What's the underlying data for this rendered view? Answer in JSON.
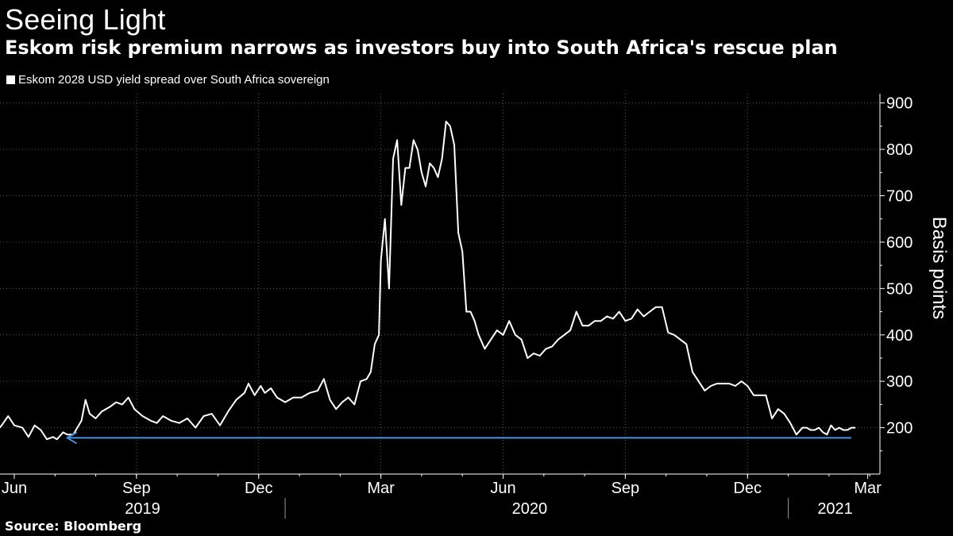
{
  "header": {
    "title": "Seeing Light",
    "subtitle": "Eskom risk premium narrows as investors buy into South Africa's rescue plan"
  },
  "legend": {
    "label": "Eskom 2028 USD yield spread over South Africa sovereign"
  },
  "footer": {
    "source": "Source: Bloomberg"
  },
  "colors": {
    "background": "#000000",
    "series": "#ffffff",
    "arrow": "#4a90e2",
    "grid": "#555555"
  },
  "chart_data": {
    "type": "line",
    "title": "Seeing Light",
    "subtitle": "Eskom risk premium narrows as investors buy into South Africa's rescue plan",
    "ylabel": "Basis points",
    "ylim": [
      100,
      920
    ],
    "yticks": [
      200,
      300,
      400,
      500,
      600,
      700,
      800,
      900
    ],
    "xlim": [
      0,
      21.6
    ],
    "x_units": "months since 2019-05-21",
    "month_ticks": [
      {
        "label": "Jun",
        "x": 0.35
      },
      {
        "label": "Sep",
        "x": 3.35
      },
      {
        "label": "Dec",
        "x": 6.35
      },
      {
        "label": "Mar",
        "x": 9.35
      },
      {
        "label": "Jun",
        "x": 12.35
      },
      {
        "label": "Sep",
        "x": 15.35
      },
      {
        "label": "Dec",
        "x": 18.35
      },
      {
        "label": "Mar",
        "x": 21.3
      }
    ],
    "year_labels": [
      {
        "label": "2019",
        "x": 3.5
      },
      {
        "label": "2020",
        "x": 13.0
      },
      {
        "label": "2021",
        "x": 20.5
      }
    ],
    "year_dividers": [
      7.0,
      19.35
    ],
    "series": [
      {
        "name": "Eskom 2028 USD yield spread over South Africa sovereign",
        "x": [
          0.0,
          0.2,
          0.35,
          0.55,
          0.7,
          0.85,
          1.0,
          1.15,
          1.3,
          1.4,
          1.55,
          1.65,
          1.8,
          2.0,
          2.1,
          2.2,
          2.35,
          2.5,
          2.7,
          2.85,
          3.0,
          3.15,
          3.3,
          3.5,
          3.7,
          3.85,
          4.0,
          4.2,
          4.4,
          4.6,
          4.8,
          5.0,
          5.2,
          5.4,
          5.6,
          5.8,
          6.0,
          6.1,
          6.25,
          6.4,
          6.5,
          6.65,
          6.8,
          7.0,
          7.2,
          7.4,
          7.6,
          7.8,
          7.95,
          8.1,
          8.25,
          8.4,
          8.55,
          8.7,
          8.85,
          9.0,
          9.1,
          9.2,
          9.3,
          9.35,
          9.45,
          9.55,
          9.65,
          9.75,
          9.85,
          9.95,
          10.05,
          10.15,
          10.25,
          10.35,
          10.45,
          10.55,
          10.65,
          10.75,
          10.85,
          10.95,
          11.05,
          11.15,
          11.25,
          11.35,
          11.45,
          11.55,
          11.65,
          11.75,
          11.9,
          12.05,
          12.2,
          12.35,
          12.5,
          12.65,
          12.8,
          12.95,
          13.1,
          13.25,
          13.4,
          13.55,
          13.7,
          13.85,
          14.0,
          14.15,
          14.3,
          14.45,
          14.6,
          14.75,
          14.9,
          15.05,
          15.2,
          15.35,
          15.5,
          15.65,
          15.8,
          15.95,
          16.1,
          16.25,
          16.4,
          16.55,
          16.7,
          16.85,
          17.0,
          17.15,
          17.3,
          17.45,
          17.6,
          17.75,
          17.9,
          18.05,
          18.2,
          18.35,
          18.5,
          18.65,
          18.8,
          18.95,
          19.1,
          19.25,
          19.4,
          19.55,
          19.7,
          19.8,
          19.9,
          20.0,
          20.1,
          20.2,
          20.3,
          20.4,
          20.5,
          20.6,
          20.7,
          20.8,
          20.9,
          21.0
        ],
        "values": [
          200,
          225,
          205,
          200,
          180,
          205,
          195,
          175,
          180,
          175,
          190,
          185,
          185,
          215,
          260,
          230,
          220,
          235,
          245,
          255,
          250,
          265,
          240,
          225,
          215,
          210,
          225,
          215,
          210,
          220,
          200,
          225,
          230,
          205,
          235,
          260,
          275,
          295,
          270,
          290,
          275,
          285,
          265,
          255,
          265,
          265,
          275,
          280,
          305,
          260,
          240,
          255,
          265,
          250,
          300,
          305,
          320,
          380,
          400,
          560,
          650,
          500,
          780,
          820,
          680,
          760,
          760,
          820,
          800,
          750,
          720,
          770,
          760,
          740,
          780,
          860,
          850,
          810,
          620,
          580,
          450,
          450,
          430,
          400,
          370,
          390,
          410,
          400,
          430,
          400,
          390,
          350,
          360,
          355,
          370,
          375,
          390,
          400,
          410,
          450,
          420,
          420,
          430,
          430,
          440,
          435,
          450,
          430,
          435,
          455,
          440,
          450,
          460,
          460,
          405,
          400,
          390,
          380,
          320,
          300,
          280,
          290,
          295,
          295,
          295,
          290,
          300,
          290,
          270,
          270,
          270,
          220,
          240,
          230,
          210,
          185,
          200,
          200,
          195,
          195,
          200,
          190,
          185,
          205,
          195,
          200,
          195,
          195,
          200,
          200
        ]
      }
    ],
    "annotation": {
      "type": "horizontal-arrow",
      "y": 178,
      "x_from": 20.9,
      "x_to": 1.65
    }
  }
}
